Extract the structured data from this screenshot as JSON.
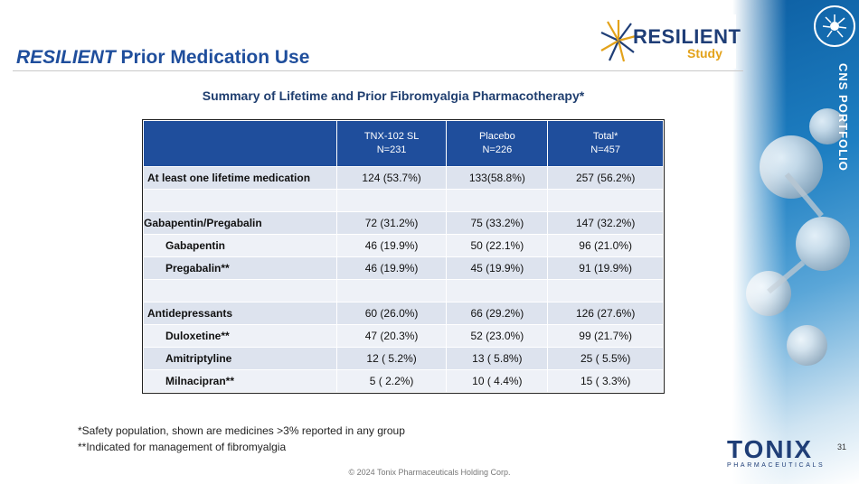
{
  "header": {
    "title_italic": "RESILIENT",
    "title_rest": "Prior Medication Use",
    "logo_main": "RESILIENT",
    "logo_sub": "Study"
  },
  "side": {
    "portfolio_label": "CNS PORTFOLIO"
  },
  "table": {
    "subtitle": "Summary of Lifetime and Prior Fibromyalgia Pharmacotherapy*",
    "columns": [
      {
        "name": "TNX-102 SL",
        "n": "N=231"
      },
      {
        "name": "Placebo",
        "n": "N=226"
      },
      {
        "name": "Total*",
        "n": "N=457"
      }
    ],
    "rows": [
      {
        "label": "At least one lifetime medication",
        "v1": "124 (53.7%)",
        "v2": "133(58.8%)",
        "v3": "257 (56.2%)"
      },
      {
        "label": "",
        "v1": "",
        "v2": "",
        "v3": ""
      },
      {
        "label": "Gabapentin/Pregabalin",
        "v1": "72 (31.2%)",
        "v2": "75 (33.2%)",
        "v3": "147 (32.2%)"
      },
      {
        "label": "Gabapentin",
        "v1": "46 (19.9%)",
        "v2": "50 (22.1%)",
        "v3": "96 (21.0%)"
      },
      {
        "label": "Pregabalin**",
        "v1": "46 (19.9%)",
        "v2": "45 (19.9%)",
        "v3": "91 (19.9%)"
      },
      {
        "label": "",
        "v1": "",
        "v2": "",
        "v3": ""
      },
      {
        "label": "Antidepressants",
        "v1": "60 (26.0%)",
        "v2": "66 (29.2%)",
        "v3": "126 (27.6%)"
      },
      {
        "label": "Duloxetine**",
        "v1": "47 (20.3%)",
        "v2": "52 (23.0%)",
        "v3": "99 (21.7%)"
      },
      {
        "label": "Amitriptyline",
        "v1": "12 ( 5.2%)",
        "v2": "13 ( 5.8%)",
        "v3": "25 ( 5.5%)"
      },
      {
        "label": "Milnacipran**",
        "v1": "5 ( 2.2%)",
        "v2": "10 ( 4.4%)",
        "v3": "15 ( 3.3%)"
      }
    ]
  },
  "footnotes": {
    "note1": "*Safety population, shown are medicines >3% reported in any group",
    "note2": "**Indicated for management of fibromyalgia"
  },
  "footer": {
    "copyright": "© 2024 Tonix Pharmaceuticals Holding Corp.",
    "page_number": "31",
    "company_name": "TONIX",
    "company_sub": "PHARMACEUTICALS"
  },
  "colors": {
    "header_blue": "#1f4e9c",
    "row_odd": "#dde3ee",
    "row_even": "#eef1f7",
    "logo_gold": "#e3a21a"
  }
}
